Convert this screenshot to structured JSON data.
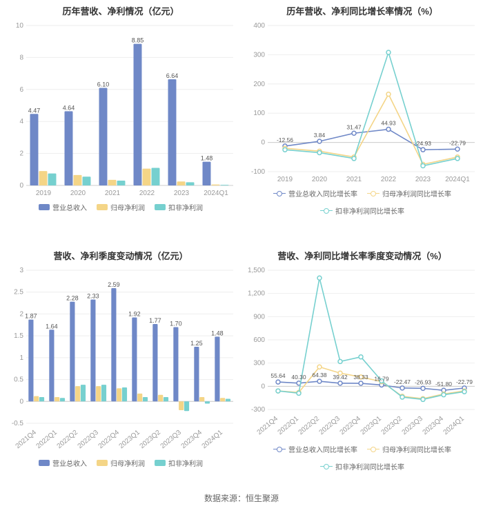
{
  "source_text": "数据来源：恒生聚源",
  "colors": {
    "revenue": "#6f88c7",
    "profit_parent": "#f4d587",
    "profit_nonrec": "#76d0cf",
    "grid": "#eeeeee",
    "axis": "#cccccc",
    "text": "#333333",
    "tick": "#999999"
  },
  "panels": {
    "tl": {
      "title": "历年营收、净利情况（亿元）",
      "type": "bar",
      "categories": [
        "2019",
        "2020",
        "2021",
        "2022",
        "2023",
        "2024Q1"
      ],
      "ylim": [
        0,
        10
      ],
      "ystep": 2,
      "series": [
        {
          "name": "营业总收入",
          "color": "#6f88c7",
          "values": [
            4.47,
            4.64,
            6.1,
            8.85,
            6.64,
            1.48
          ],
          "show_labels": true
        },
        {
          "name": "归母净利润",
          "color": "#f4d587",
          "values": [
            0.9,
            0.65,
            0.35,
            1.05,
            0.25,
            0.06
          ],
          "show_labels": false
        },
        {
          "name": "扣非净利润",
          "color": "#76d0cf",
          "values": [
            0.75,
            0.55,
            0.3,
            1.1,
            0.2,
            0.04
          ],
          "show_labels": false
        }
      ],
      "legend": [
        "营业总收入",
        "归母净利润",
        "扣非净利润"
      ],
      "legend_type": "bar",
      "x_rotate": 0
    },
    "tr": {
      "title": "历年营收、净利同比增长率情况（%）",
      "type": "line",
      "categories": [
        "2019",
        "2020",
        "2021",
        "2022",
        "2023",
        "2024Q1"
      ],
      "ylim": [
        -100,
        400
      ],
      "ystep": 100,
      "series": [
        {
          "name": "营业总收入同比增长率",
          "color": "#6f88c7",
          "values": [
            -12.56,
            3.84,
            31.47,
            44.93,
            -24.93,
            -22.79
          ]
        },
        {
          "name": "归母净利润同比增长率",
          "color": "#f4d587",
          "values": [
            -20,
            -30,
            -50,
            165,
            -75,
            -50
          ]
        },
        {
          "name": "扣非净利润同比增长率",
          "color": "#76d0cf",
          "values": [
            -25,
            -35,
            -55,
            308,
            -80,
            -55
          ]
        }
      ],
      "label_series_index": 0,
      "legend": [
        "营业总收入同比增长率",
        "归母净利润同比增长率",
        "扣非净利润同比增长率"
      ],
      "legend_type": "line",
      "x_rotate": 0
    },
    "bl": {
      "title": "营收、净利季度变动情况（亿元）",
      "type": "bar",
      "categories": [
        "2021Q4",
        "2022Q1",
        "2022Q2",
        "2022Q3",
        "2022Q4",
        "2023Q1",
        "2023Q2",
        "2023Q3",
        "2023Q4",
        "2024Q1"
      ],
      "ylim": [
        -0.5,
        3
      ],
      "ystep": 0.5,
      "series": [
        {
          "name": "营业总收入",
          "color": "#6f88c7",
          "values": [
            1.87,
            1.64,
            2.28,
            2.33,
            2.59,
            1.92,
            1.77,
            1.7,
            1.25,
            1.48
          ],
          "show_labels": true
        },
        {
          "name": "归母净利润",
          "color": "#f4d587",
          "values": [
            0.12,
            0.1,
            0.35,
            0.35,
            0.3,
            0.18,
            0.15,
            -0.2,
            0.1,
            0.08
          ],
          "show_labels": false
        },
        {
          "name": "扣非净利润",
          "color": "#76d0cf",
          "values": [
            0.1,
            0.08,
            0.38,
            0.38,
            0.32,
            0.1,
            0.1,
            -0.22,
            -0.05,
            0.06
          ],
          "show_labels": false
        }
      ],
      "legend": [
        "营业总收入",
        "归母净利润",
        "扣非净利润"
      ],
      "legend_type": "bar",
      "x_rotate": -40
    },
    "br": {
      "title": "营收、净利同比增长率季度变动情况（%）",
      "type": "line",
      "categories": [
        "2021Q4",
        "2022Q1",
        "2022Q2",
        "2022Q3",
        "2022Q4",
        "2023Q1",
        "2023Q2",
        "2023Q3",
        "2023Q4",
        "2024Q1"
      ],
      "ylim": [
        -300,
        1500
      ],
      "ystep": 300,
      "series": [
        {
          "name": "营业总收入同比增长率",
          "color": "#6f88c7",
          "values": [
            55.64,
            40.3,
            64.38,
            39.42,
            38.33,
            16.79,
            -22.47,
            -26.93,
            -51.8,
            -22.79
          ]
        },
        {
          "name": "归母净利润同比增长率",
          "color": "#f4d587",
          "values": [
            -60,
            -80,
            250,
            170,
            120,
            60,
            -130,
            -160,
            -100,
            -60
          ]
        },
        {
          "name": "扣非净利润同比增长率",
          "color": "#76d0cf",
          "values": [
            -60,
            -90,
            1400,
            320,
            380,
            70,
            -140,
            -170,
            -110,
            -70
          ]
        }
      ],
      "label_series_index": 0,
      "legend": [
        "营业总收入同比增长率",
        "归母净利润同比增长率",
        "扣非净利润同比增长率"
      ],
      "legend_type": "line",
      "x_rotate": -40
    }
  }
}
